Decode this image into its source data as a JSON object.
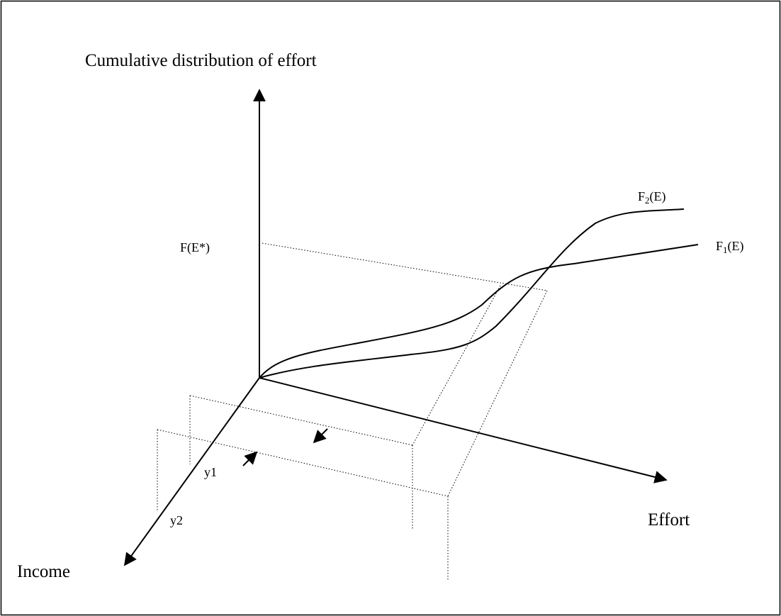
{
  "labels": {
    "vertical_axis": "Cumulative distribution of effort",
    "effort_axis": "Effort",
    "income_axis": "Income",
    "threshold": "F(E*)",
    "income_1": "y1",
    "income_2": "y2"
  },
  "curves": [
    {
      "base": "F",
      "sub": "1",
      "rest": "(E)"
    },
    {
      "base": "F",
      "sub": "2",
      "rest": "(E)"
    }
  ]
}
